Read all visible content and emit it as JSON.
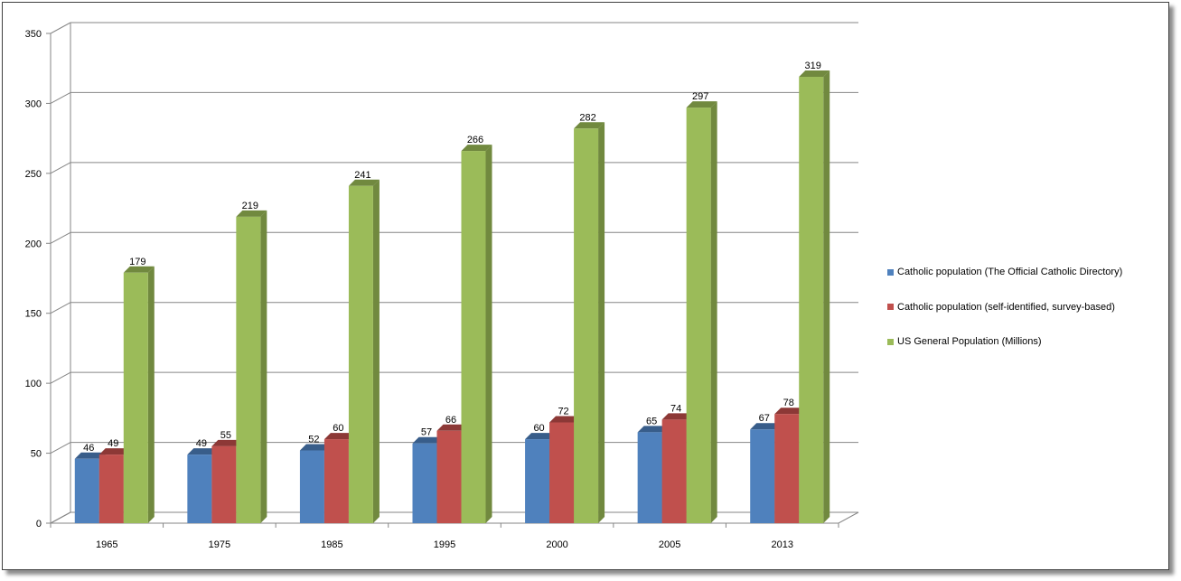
{
  "chart_data": {
    "type": "bar",
    "categories": [
      "1965",
      "1975",
      "1985",
      "1995",
      "2000",
      "2005",
      "2013"
    ],
    "series": [
      {
        "name": "Catholic population (The Official Catholic Directory)",
        "color": "#4f81bd",
        "side": "#385d8a",
        "values": [
          46,
          49,
          52,
          57,
          60,
          65,
          67
        ]
      },
      {
        "name": "Catholic population (self-identified, survey-based)",
        "color": "#c0504d",
        "side": "#8c3836",
        "values": [
          49,
          55,
          60,
          66,
          72,
          74,
          78
        ]
      },
      {
        "name": "US General Population (Millions)",
        "color": "#9bbb59",
        "side": "#71893f",
        "values": [
          179,
          219,
          241,
          266,
          282,
          297,
          319
        ]
      }
    ],
    "yticks": [
      0,
      50,
      100,
      150,
      200,
      250,
      300,
      350
    ],
    "ylim": [
      0,
      350
    ],
    "grid": true,
    "legend_position": "right",
    "data_labels": true
  }
}
